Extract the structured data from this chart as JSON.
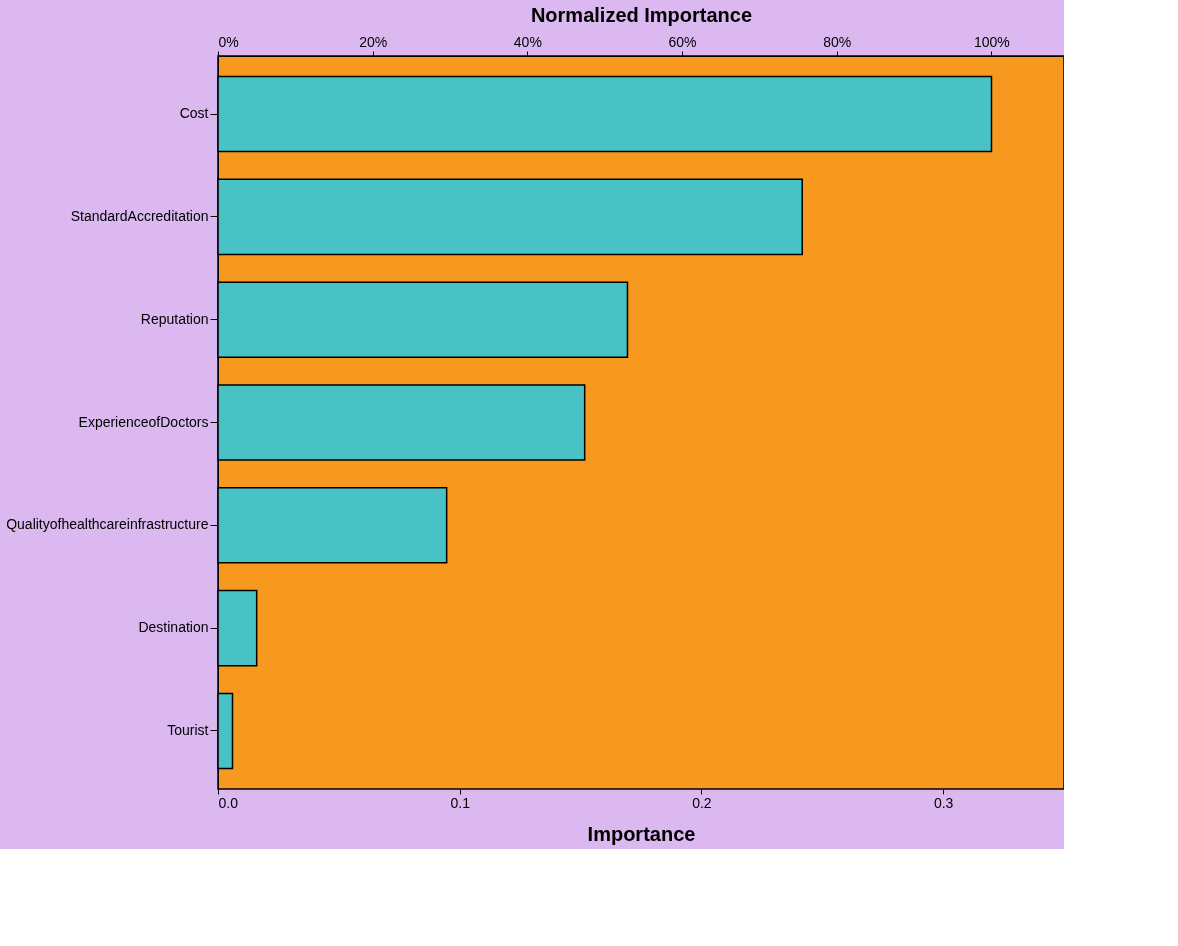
{
  "chart_data": {
    "type": "bar",
    "orientation": "horizontal",
    "xlabel": "Importance",
    "x2label": "Normalized Importance",
    "categories": [
      "Cost",
      "StandardAccreditation",
      "Reputation",
      "ExperienceofDoctors",
      "Qualityofhealthcareinfrastructure",
      "Destination",
      "Tourist"
    ],
    "values": [
      0.32,
      0.2417,
      0.1694,
      0.1517,
      0.0946,
      0.016,
      0.006
    ],
    "color": "#48c2c5",
    "xlim": [
      0,
      0.35
    ],
    "xticks": [
      {
        "value": 0,
        "label": "0.0"
      },
      0.1,
      0.2,
      0.3
    ],
    "x2lim": [
      0,
      109.4
    ],
    "x2ticks": [
      {
        "value": 0,
        "label": "0%"
      },
      {
        "value": 20,
        "label": "20%"
      },
      {
        "value": 40,
        "label": "40%"
      },
      {
        "value": 60,
        "label": "60%"
      },
      {
        "value": 80,
        "label": "80%"
      },
      {
        "value": 100,
        "label": "100%"
      }
    ],
    "grid": false
  }
}
